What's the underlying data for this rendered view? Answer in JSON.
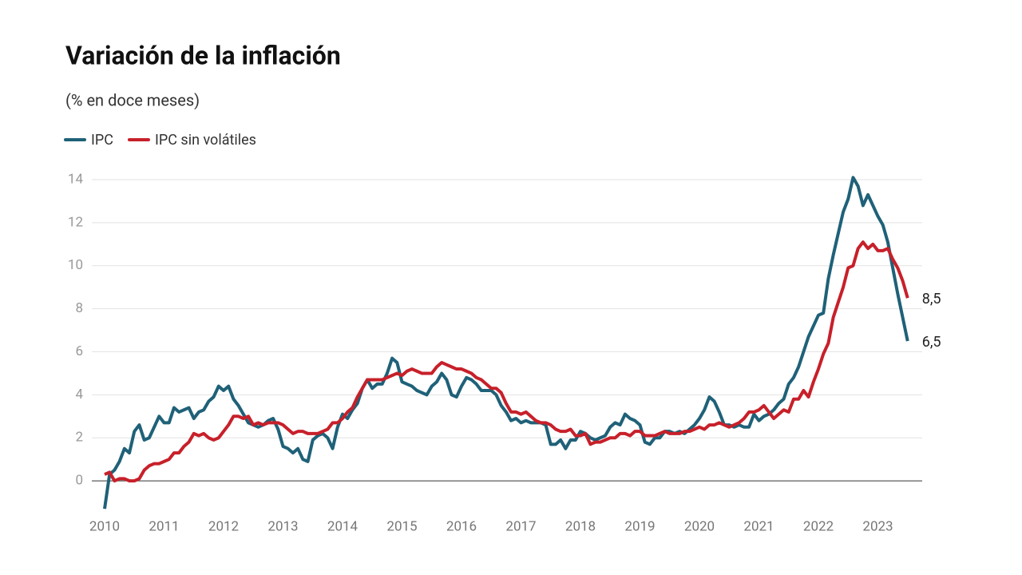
{
  "chart_data": {
    "type": "line",
    "title": "Variación de la inflación",
    "subtitle": "(% en doce meses)",
    "categories": [
      "2010",
      null,
      null,
      null,
      null,
      null,
      null,
      null,
      null,
      null,
      null,
      null,
      "2011",
      null,
      null,
      null,
      null,
      null,
      null,
      null,
      null,
      null,
      null,
      null,
      "2012",
      null,
      null,
      null,
      null,
      null,
      null,
      null,
      null,
      null,
      null,
      null,
      "2013",
      null,
      null,
      null,
      null,
      null,
      null,
      null,
      null,
      null,
      null,
      null,
      "2014",
      null,
      null,
      null,
      null,
      null,
      null,
      null,
      null,
      null,
      null,
      null,
      "2015",
      null,
      null,
      null,
      null,
      null,
      null,
      null,
      null,
      null,
      null,
      null,
      "2016",
      null,
      null,
      null,
      null,
      null,
      null,
      null,
      null,
      null,
      null,
      null,
      "2017",
      null,
      null,
      null,
      null,
      null,
      null,
      null,
      null,
      null,
      null,
      null,
      "2018",
      null,
      null,
      null,
      null,
      null,
      null,
      null,
      null,
      null,
      null,
      null,
      "2019",
      null,
      null,
      null,
      null,
      null,
      null,
      null,
      null,
      null,
      null,
      null,
      "2020",
      null,
      null,
      null,
      null,
      null,
      null,
      null,
      null,
      null,
      null,
      null,
      "2021",
      null,
      null,
      null,
      null,
      null,
      null,
      null,
      null,
      null,
      null,
      null,
      "2022",
      null,
      null,
      null,
      null,
      null,
      null,
      null,
      null,
      null,
      null,
      null,
      "2023",
      null,
      null,
      null,
      null,
      null,
      null
    ],
    "series": [
      {
        "name": "IPC",
        "color": "#1f6178",
        "values": [
          -1.3,
          0.3,
          0.5,
          0.9,
          1.5,
          1.3,
          2.3,
          2.6,
          1.9,
          2.0,
          2.5,
          3.0,
          2.7,
          2.7,
          3.4,
          3.2,
          3.3,
          3.4,
          2.9,
          3.2,
          3.3,
          3.7,
          3.9,
          4.4,
          4.2,
          4.4,
          3.8,
          3.5,
          3.1,
          2.7,
          2.6,
          2.5,
          2.6,
          2.8,
          2.9,
          2.4,
          1.6,
          1.5,
          1.3,
          1.5,
          1.0,
          0.9,
          1.9,
          2.1,
          2.2,
          2.0,
          1.5,
          2.5,
          3.1,
          2.9,
          3.3,
          3.6,
          4.3,
          4.7,
          4.3,
          4.5,
          4.5,
          5.0,
          5.7,
          5.5,
          4.6,
          4.5,
          4.4,
          4.2,
          4.1,
          4.0,
          4.4,
          4.6,
          5.0,
          4.7,
          4.0,
          3.9,
          4.4,
          4.8,
          4.7,
          4.5,
          4.2,
          4.2,
          4.2,
          4.0,
          3.5,
          3.2,
          2.8,
          2.9,
          2.7,
          2.8,
          2.7,
          2.7,
          2.7,
          2.6,
          1.7,
          1.7,
          1.9,
          1.5,
          1.9,
          1.9,
          2.3,
          2.2,
          2.0,
          1.9,
          2.0,
          2.1,
          2.5,
          2.7,
          2.6,
          3.1,
          2.9,
          2.8,
          2.6,
          1.8,
          1.7,
          2.0,
          2.0,
          2.3,
          2.3,
          2.2,
          2.3,
          2.2,
          2.4,
          2.6,
          2.9,
          3.3,
          3.9,
          3.7,
          3.2,
          2.6,
          2.6,
          2.5,
          2.6,
          2.5,
          2.5,
          3.1,
          2.8,
          3.0,
          3.1,
          3.3,
          3.6,
          3.8,
          4.5,
          4.8,
          5.3,
          6.0,
          6.7,
          7.2,
          7.7,
          7.8,
          9.4,
          10.5,
          11.5,
          12.5,
          13.1,
          14.1,
          13.7,
          12.8,
          13.3,
          12.8,
          12.3,
          11.9,
          11.1,
          9.9,
          8.7,
          7.6,
          6.5
        ],
        "value_labels": [
          null,
          null,
          null,
          null,
          null,
          null,
          null,
          null,
          null,
          null,
          null,
          null,
          null,
          null,
          null,
          null,
          null,
          null,
          null,
          null,
          null,
          null,
          null,
          null,
          null,
          null,
          null,
          null,
          null,
          null,
          null,
          null,
          null,
          null,
          null,
          null,
          null,
          null,
          null,
          null,
          null,
          null,
          null,
          null,
          null,
          null,
          null,
          null,
          null,
          null,
          null,
          null,
          null,
          null,
          null,
          null,
          null,
          null,
          null,
          null,
          null,
          null,
          null,
          null,
          null,
          null,
          null,
          null,
          null,
          null,
          null,
          null,
          null,
          null,
          null,
          null,
          null,
          null,
          null,
          null,
          null,
          null,
          null,
          null,
          null,
          null,
          null,
          null,
          null,
          null,
          null,
          null,
          null,
          null,
          null,
          null,
          null,
          null,
          null,
          null,
          null,
          null,
          null,
          null,
          null,
          null,
          null,
          null,
          null,
          null,
          null,
          null,
          null,
          null,
          null,
          null,
          null,
          null,
          null,
          null,
          null,
          null,
          null,
          null,
          null,
          null,
          null,
          null,
          null,
          null,
          null,
          null,
          null,
          null,
          null,
          null,
          null,
          null,
          null,
          null,
          null,
          null,
          null,
          null,
          null,
          null,
          null,
          null,
          null,
          null,
          null,
          null,
          null,
          null,
          null,
          null,
          null,
          null,
          null,
          null,
          null,
          null,
          "6,5"
        ]
      },
      {
        "name": "IPC sin volátiles",
        "color": "#c7202a",
        "values": [
          0.3,
          0.4,
          0.0,
          0.1,
          0.1,
          0.0,
          0.0,
          0.1,
          0.5,
          0.7,
          0.8,
          0.8,
          0.9,
          1.0,
          1.3,
          1.3,
          1.6,
          1.8,
          2.2,
          2.1,
          2.2,
          2.0,
          1.9,
          2.0,
          2.3,
          2.6,
          3.0,
          3.0,
          2.9,
          3.0,
          2.6,
          2.7,
          2.6,
          2.7,
          2.7,
          2.7,
          2.6,
          2.4,
          2.2,
          2.3,
          2.3,
          2.2,
          2.2,
          2.2,
          2.3,
          2.4,
          2.7,
          2.7,
          2.9,
          3.2,
          3.4,
          3.9,
          4.3,
          4.7,
          4.7,
          4.7,
          4.7,
          4.8,
          4.9,
          5.0,
          4.9,
          5.1,
          5.2,
          5.1,
          5.0,
          5.0,
          5.0,
          5.3,
          5.5,
          5.4,
          5.3,
          5.2,
          5.2,
          5.1,
          5.0,
          4.8,
          4.7,
          4.5,
          4.3,
          4.3,
          4.1,
          3.6,
          3.2,
          3.2,
          3.1,
          3.2,
          3.0,
          2.8,
          2.7,
          2.7,
          2.6,
          2.4,
          2.3,
          2.3,
          2.4,
          2.1,
          2.1,
          2.2,
          1.7,
          1.8,
          1.8,
          1.9,
          2.0,
          2.0,
          2.2,
          2.2,
          2.1,
          2.3,
          2.3,
          2.1,
          2.1,
          2.1,
          2.2,
          2.3,
          2.2,
          2.2,
          2.2,
          2.3,
          2.3,
          2.4,
          2.5,
          2.4,
          2.6,
          2.6,
          2.7,
          2.6,
          2.5,
          2.6,
          2.7,
          2.9,
          3.2,
          3.2,
          3.3,
          3.5,
          3.2,
          2.9,
          3.1,
          3.3,
          3.2,
          3.8,
          3.8,
          4.2,
          3.9,
          4.6,
          5.2,
          5.9,
          6.4,
          7.6,
          8.3,
          9.0,
          9.9,
          10.0,
          10.8,
          11.1,
          10.8,
          11.0,
          10.7,
          10.7,
          10.8,
          10.3,
          9.9,
          9.3,
          8.5
        ],
        "value_labels": [
          null,
          null,
          null,
          null,
          null,
          null,
          null,
          null,
          null,
          null,
          null,
          null,
          null,
          null,
          null,
          null,
          null,
          null,
          null,
          null,
          null,
          null,
          null,
          null,
          null,
          null,
          null,
          null,
          null,
          null,
          null,
          null,
          null,
          null,
          null,
          null,
          null,
          null,
          null,
          null,
          null,
          null,
          null,
          null,
          null,
          null,
          null,
          null,
          null,
          null,
          null,
          null,
          null,
          null,
          null,
          null,
          null,
          null,
          null,
          null,
          null,
          null,
          null,
          null,
          null,
          null,
          null,
          null,
          null,
          null,
          null,
          null,
          null,
          null,
          null,
          null,
          null,
          null,
          null,
          null,
          null,
          null,
          null,
          null,
          null,
          null,
          null,
          null,
          null,
          null,
          null,
          null,
          null,
          null,
          null,
          null,
          null,
          null,
          null,
          null,
          null,
          null,
          null,
          null,
          null,
          null,
          null,
          null,
          null,
          null,
          null,
          null,
          null,
          null,
          null,
          null,
          null,
          null,
          null,
          null,
          null,
          null,
          null,
          null,
          null,
          null,
          null,
          null,
          null,
          null,
          null,
          null,
          null,
          null,
          null,
          null,
          null,
          null,
          null,
          null,
          null,
          null,
          null,
          null,
          null,
          null,
          null,
          null,
          null,
          null,
          null,
          null,
          null,
          null,
          null,
          null,
          null,
          null,
          null,
          null,
          null,
          null,
          "8,5"
        ]
      }
    ],
    "ylim": [
      -2,
      14
    ],
    "yticks": [
      0,
      2,
      4,
      6,
      8,
      10,
      12,
      14
    ],
    "grid": true,
    "legend": "top-left"
  }
}
